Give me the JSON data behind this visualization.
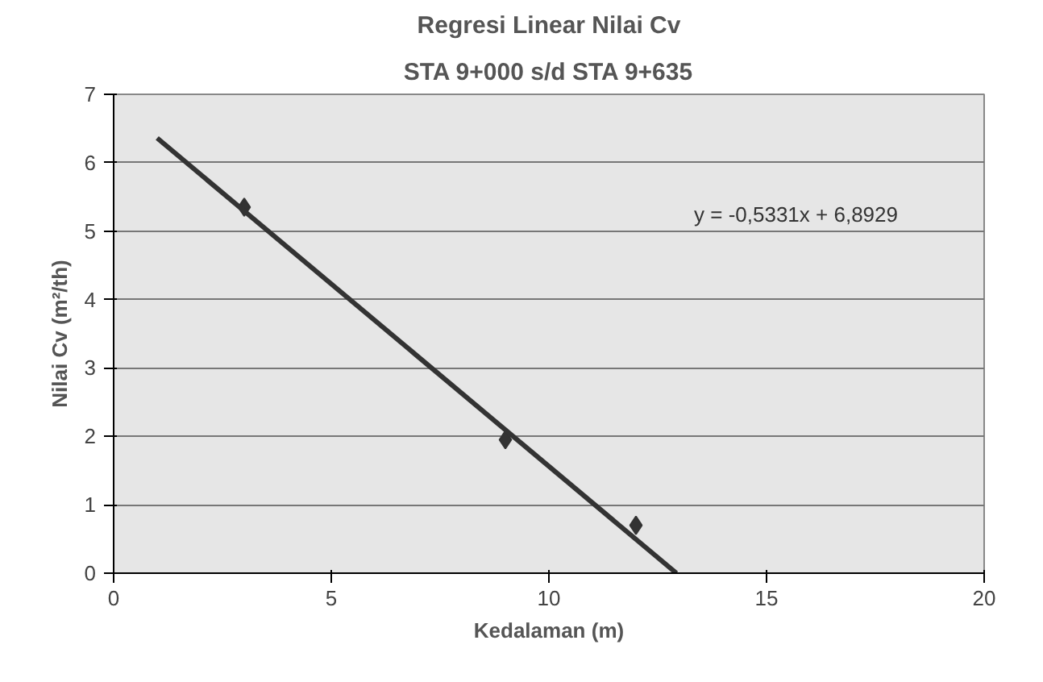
{
  "chart_data": {
    "type": "scatter",
    "title": "Regresi Linear Nilai Cv",
    "subtitle": "STA 9+000 s/d STA 9+635",
    "xlabel": "Kedalaman (m)",
    "ylabel": "Nilai Cv (m²/th)",
    "series": [
      {
        "color": "#333333",
        "x": [
          3,
          9,
          12
        ],
        "values": [
          5.35,
          1.95,
          0.7
        ],
        "marker": "diamond"
      },
      {
        "type": "line",
        "color": "#333333",
        "x": [
          1,
          12.93
        ],
        "values": [
          6.36,
          0
        ],
        "line_style": "solid"
      }
    ],
    "annotations": [
      "y = -0,5331x + 6,8929"
    ],
    "xlim": [
      0,
      20
    ],
    "ylim": [
      0,
      7
    ],
    "xticks": [
      0,
      5,
      10,
      15,
      20
    ],
    "yticks": [
      0,
      1,
      2,
      3,
      4,
      5,
      6,
      7
    ],
    "grid": "y"
  }
}
